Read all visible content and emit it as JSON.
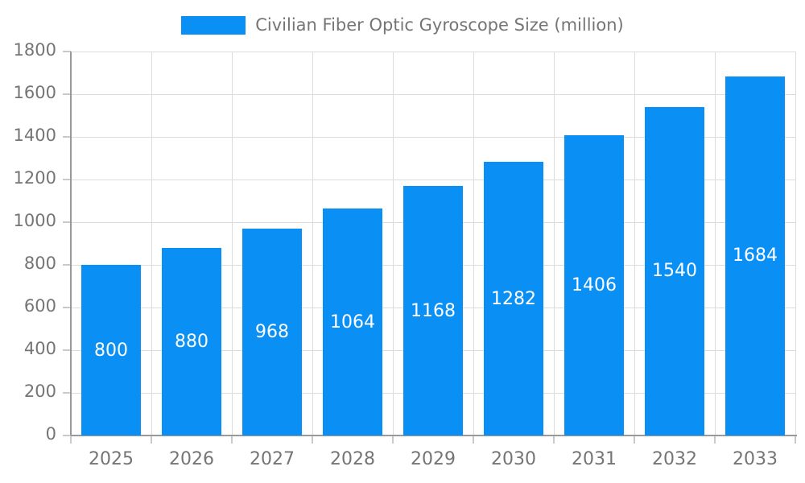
{
  "legend": {
    "label": "Civilian Fiber Optic Gyroscope Size (million)"
  },
  "chart_data": {
    "type": "bar",
    "title": "Civilian Fiber Optic Gyroscope Size (million)",
    "categories": [
      "2025",
      "2026",
      "2027",
      "2028",
      "2029",
      "2030",
      "2031",
      "2032",
      "2033"
    ],
    "values": [
      800,
      880,
      968,
      1064,
      1168,
      1282,
      1406,
      1540,
      1684
    ],
    "series_name": "Civilian Fiber Optic Gyroscope Size (million)",
    "xlabel": "",
    "ylabel": "",
    "ylim": [
      0,
      1800
    ],
    "ytick_step": 200,
    "ytick_labels": [
      "0",
      "200",
      "400",
      "600",
      "800",
      "1000",
      "1200",
      "1400",
      "1600",
      "1800"
    ],
    "grid": "on",
    "legend_position": "top-center",
    "value_labels": "inside-center"
  },
  "colors": {
    "bar": "#0a90f5",
    "bar_value_text": "#ffffff",
    "axis_text": "#757575",
    "legend_text": "#757575",
    "gridline": "#dcdcdc",
    "axis_line": "#999999",
    "tick_line": "#c9c9c9",
    "background": "#ffffff"
  }
}
